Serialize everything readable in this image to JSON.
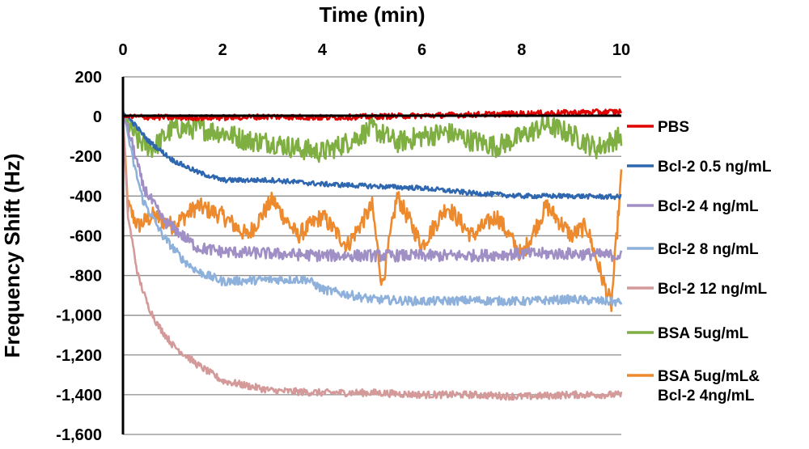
{
  "chart_data": {
    "type": "line",
    "title": "",
    "xlabel": "Time (min)",
    "ylabel": "Frequency Shift (Hz)",
    "xlim": [
      0,
      10
    ],
    "ylim": [
      -1600,
      200
    ],
    "x_ticks": [
      0,
      2,
      4,
      6,
      8,
      10
    ],
    "x_tick_labels": [
      "0",
      "2",
      "4",
      "6",
      "8",
      "10"
    ],
    "y_ticks": [
      200,
      0,
      -200,
      -400,
      -600,
      -800,
      -1000,
      -1200,
      -1400,
      -1600
    ],
    "y_tick_labels": [
      "200",
      "0",
      "-200",
      "-400",
      "-600",
      "-800",
      "-1,000",
      "-1,200",
      "-1,400",
      "-1,600"
    ],
    "x_axis_position": "top",
    "grid": "horizontal",
    "legend_position": "right",
    "series": [
      {
        "name": "PBS",
        "label_lines": [
          "PBS"
        ],
        "color": "#e00000",
        "noise": 14,
        "x": [
          0,
          1,
          2,
          3,
          4,
          5,
          6,
          7,
          8,
          9,
          10
        ],
        "y": [
          0,
          -5,
          -5,
          0,
          -5,
          0,
          5,
          10,
          15,
          20,
          25
        ]
      },
      {
        "name": "Bcl-2 0.5 ng/mL",
        "label_lines": [
          "Bcl-2 0.5 ng/mL"
        ],
        "color": "#2e67b0",
        "noise": 12,
        "x": [
          0,
          0.2,
          0.5,
          1.0,
          1.5,
          2.0,
          3.0,
          4.0,
          5.0,
          6.0,
          7.0,
          8.0,
          9.0,
          10.0
        ],
        "y": [
          20,
          -30,
          -120,
          -220,
          -280,
          -320,
          -320,
          -340,
          -350,
          -360,
          -385,
          -400,
          -400,
          -405
        ]
      },
      {
        "name": "Bcl-2 4 ng/mL",
        "label_lines": [
          "Bcl-2 4 ng/mL"
        ],
        "color": "#a08fc4",
        "noise": 30,
        "x": [
          0,
          0.2,
          0.4,
          0.8,
          1.2,
          1.5,
          2.0,
          3.0,
          4.0,
          5.0,
          6.0,
          7.0,
          8.0,
          9.0,
          10.0
        ],
        "y": [
          20,
          -150,
          -350,
          -520,
          -600,
          -660,
          -680,
          -690,
          -700,
          -700,
          -700,
          -700,
          -690,
          -690,
          -700
        ]
      },
      {
        "name": "Bcl-2 8 ng/mL",
        "label_lines": [
          "Bcl-2  8 ng/mL"
        ],
        "color": "#8eb1dc",
        "noise": 22,
        "x": [
          0,
          0.2,
          0.4,
          0.8,
          1.2,
          1.5,
          2.0,
          3.0,
          3.7,
          4.0,
          5.0,
          6.0,
          7.0,
          8.0,
          9.0,
          10.0
        ],
        "y": [
          40,
          -220,
          -420,
          -600,
          -720,
          -780,
          -830,
          -820,
          -820,
          -870,
          -920,
          -930,
          -925,
          -930,
          -920,
          -935
        ]
      },
      {
        "name": "Bcl-2 12 ng/mL",
        "label_lines": [
          "Bcl-2  12 ng/mL"
        ],
        "color": "#d49a9a",
        "noise": 18,
        "x": [
          0,
          0.1,
          0.3,
          0.5,
          0.7,
          1.0,
          1.5,
          2.0,
          3.0,
          4.0,
          5.0,
          6.0,
          7.0,
          8.0,
          9.0,
          10.0
        ],
        "y": [
          0,
          -500,
          -800,
          -950,
          -1050,
          -1150,
          -1250,
          -1330,
          -1380,
          -1390,
          -1390,
          -1400,
          -1400,
          -1410,
          -1400,
          -1400
        ]
      },
      {
        "name": "BSA 5ug/mL",
        "label_lines": [
          "BSA 5ug/mL"
        ],
        "color": "#7fae42",
        "noise": 55,
        "x": [
          0,
          0.3,
          0.6,
          1.0,
          1.5,
          2.0,
          2.5,
          3.0,
          3.5,
          4.0,
          4.5,
          5.0,
          5.5,
          6.0,
          6.5,
          7.0,
          7.5,
          8.0,
          8.5,
          9.0,
          9.5,
          10.0
        ],
        "y": [
          0,
          -120,
          -160,
          -60,
          -60,
          -80,
          -120,
          -130,
          -160,
          -180,
          -130,
          -60,
          -130,
          -100,
          -80,
          -120,
          -150,
          -100,
          -40,
          -90,
          -160,
          -100
        ]
      },
      {
        "name": "BSA 5ug/mL& Bcl-2 4ng/mL",
        "label_lines": [
          "BSA 5ug/mL&",
          "Bcl-2 4ng/mL"
        ],
        "color": "#ee8a2e",
        "noise": 45,
        "x": [
          0,
          0.1,
          0.3,
          0.6,
          1.0,
          1.5,
          2.0,
          2.5,
          3.0,
          3.5,
          4.0,
          4.5,
          5.0,
          5.2,
          5.5,
          6.0,
          6.5,
          7.0,
          7.5,
          8.0,
          8.5,
          9.0,
          9.3,
          9.6,
          9.8,
          10.0
        ],
        "y": [
          0,
          -450,
          -550,
          -500,
          -550,
          -450,
          -500,
          -600,
          -420,
          -600,
          -500,
          -650,
          -450,
          -850,
          -400,
          -650,
          -450,
          -600,
          -500,
          -700,
          -450,
          -600,
          -550,
          -800,
          -950,
          -300
        ]
      }
    ]
  }
}
